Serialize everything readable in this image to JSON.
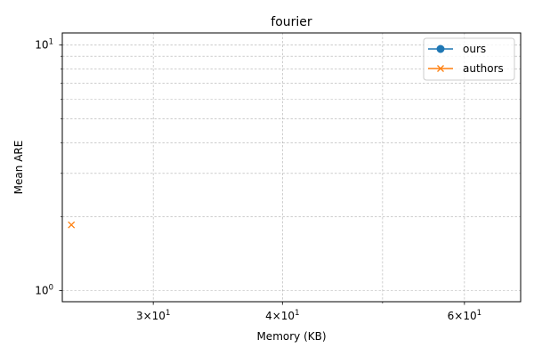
{
  "chart_data": {
    "type": "scatter",
    "title": "fourier",
    "xlabel": "Memory (KB)",
    "ylabel": "Mean ARE",
    "xscale": "log",
    "yscale": "log",
    "xlim": [
      24.5,
      68
    ],
    "ylim": [
      0.9,
      11.2
    ],
    "grid": "both (major and minor, dashed)",
    "legend_position": "top-right",
    "x_ticks": [
      {
        "value": 30,
        "base": "3",
        "exp": "1"
      },
      {
        "value": 40,
        "base": "4",
        "exp": "1"
      },
      {
        "value": 60,
        "base": "6",
        "exp": "1"
      }
    ],
    "x_minor_ticks": [
      50
    ],
    "y_ticks": [
      {
        "value": 1,
        "base": "10",
        "exp": "0"
      },
      {
        "value": 10,
        "base": "10",
        "exp": "1"
      }
    ],
    "y_minor_ticks": [
      2,
      3,
      4,
      5,
      6,
      7,
      8,
      9
    ],
    "series": [
      {
        "name": "ours",
        "color": "#1f77b4",
        "marker": "circle",
        "x": [],
        "y": []
      },
      {
        "name": "authors",
        "color": "#ff7f0e",
        "marker": "x",
        "x": [
          25
        ],
        "y": [
          1.85
        ]
      }
    ]
  }
}
